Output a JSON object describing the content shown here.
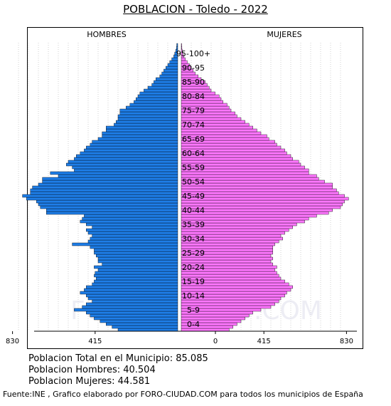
{
  "title": "POBLACION - Toledo - 2022",
  "watermark": "FORO-CIUDAD.COM",
  "summary": {
    "total": "Poblacion Total en el Municipio: 85.085",
    "hombres": "Poblacion Hombres: 40.504",
    "mujeres": "Poblacion Mujeres: 44.581"
  },
  "footer": "Fuente:INE , Grafico elaborado por FORO-CIUDAD.COM para todos los municipios de España",
  "chart_data": {
    "type": "population-pyramid",
    "title": "POBLACION - Toledo - 2022",
    "left_label": "HOMBRES",
    "right_label": "MUJERES",
    "x_ticks_left": [
      "830",
      "415",
      "0"
    ],
    "x_ticks_right": [
      "0",
      "415",
      "830"
    ],
    "xlim": [
      0,
      830
    ],
    "age_groups": [
      "0-4",
      "5-9",
      "10-14",
      "15-19",
      "20-24",
      "25-29",
      "30-34",
      "35-39",
      "40-44",
      "45-49",
      "50-54",
      "55-59",
      "60-64",
      "65-69",
      "70-74",
      "75-79",
      "80-84",
      "85-90",
      "90-95",
      "95-100+"
    ],
    "ages": [
      0,
      1,
      2,
      3,
      4,
      5,
      6,
      7,
      8,
      9,
      10,
      11,
      12,
      13,
      14,
      15,
      16,
      17,
      18,
      19,
      20,
      21,
      22,
      23,
      24,
      25,
      26,
      27,
      28,
      29,
      30,
      31,
      32,
      33,
      34,
      35,
      36,
      37,
      38,
      39,
      40,
      41,
      42,
      43,
      44,
      45,
      46,
      47,
      48,
      49,
      50,
      51,
      52,
      53,
      54,
      55,
      56,
      57,
      58,
      59,
      60,
      61,
      62,
      63,
      64,
      65,
      66,
      67,
      68,
      69,
      70,
      71,
      72,
      73,
      74,
      75,
      76,
      77,
      78,
      79,
      80,
      81,
      82,
      83,
      84,
      85,
      86,
      87,
      88,
      89,
      90,
      91,
      92,
      93,
      94,
      95,
      96,
      97,
      98,
      99,
      100
    ],
    "hombres": [
      300,
      330,
      360,
      390,
      420,
      440,
      460,
      520,
      480,
      460,
      430,
      450,
      460,
      490,
      470,
      460,
      430,
      420,
      410,
      420,
      415,
      400,
      420,
      380,
      400,
      400,
      410,
      420,
      420,
      440,
      530,
      450,
      440,
      430,
      450,
      460,
      430,
      460,
      490,
      480,
      470,
      660,
      660,
      690,
      700,
      710,
      760,
      780,
      740,
      740,
      730,
      700,
      680,
      680,
      600,
      640,
      520,
      530,
      560,
      550,
      520,
      510,
      490,
      470,
      460,
      440,
      430,
      400,
      380,
      380,
      360,
      360,
      320,
      310,
      300,
      300,
      290,
      290,
      260,
      240,
      220,
      210,
      200,
      190,
      170,
      150,
      130,
      120,
      110,
      90,
      80,
      70,
      60,
      50,
      40,
      30,
      20,
      15,
      10,
      6,
      5
    ],
    "mujeres": [
      240,
      260,
      280,
      300,
      320,
      340,
      360,
      400,
      450,
      470,
      490,
      500,
      520,
      530,
      550,
      560,
      540,
      520,
      500,
      490,
      480,
      470,
      480,
      460,
      450,
      460,
      450,
      460,
      460,
      460,
      470,
      490,
      510,
      500,
      520,
      540,
      560,
      580,
      620,
      640,
      680,
      740,
      760,
      800,
      810,
      820,
      840,
      820,
      790,
      780,
      760,
      760,
      720,
      690,
      680,
      640,
      640,
      620,
      600,
      590,
      560,
      550,
      530,
      520,
      500,
      480,
      470,
      440,
      430,
      400,
      380,
      360,
      340,
      320,
      300,
      280,
      270,
      250,
      240,
      230,
      210,
      200,
      190,
      170,
      150,
      140,
      130,
      120,
      100,
      85,
      70,
      60,
      50,
      40,
      30,
      20,
      12,
      8,
      5,
      3,
      2
    ]
  }
}
